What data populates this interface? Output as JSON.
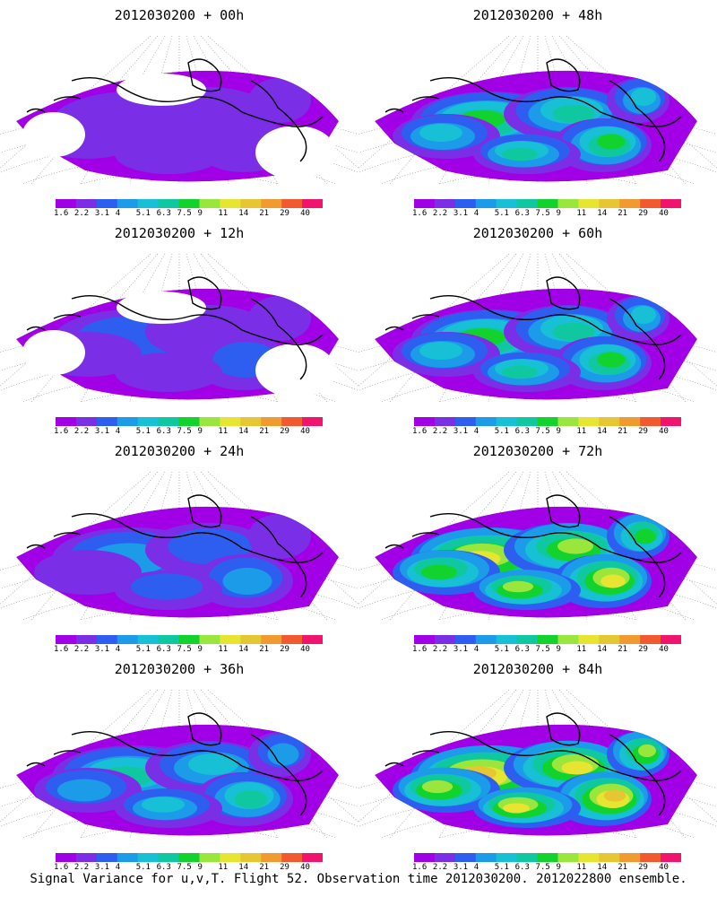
{
  "panels": [
    {
      "title": "2012030200 + 00h",
      "intensity": 0.1
    },
    {
      "title": "2012030200 + 48h",
      "intensity": 0.62
    },
    {
      "title": "2012030200 + 12h",
      "intensity": 0.25
    },
    {
      "title": "2012030200 + 60h",
      "intensity": 0.7
    },
    {
      "title": "2012030200 + 24h",
      "intensity": 0.38
    },
    {
      "title": "2012030200 + 72h",
      "intensity": 0.8
    },
    {
      "title": "2012030200 + 36h",
      "intensity": 0.5
    },
    {
      "title": "2012030200 + 84h",
      "intensity": 0.88
    }
  ],
  "colorbar": {
    "labels": [
      "1.6",
      "2.2",
      "3.1",
      "4",
      "5.1",
      "6.3",
      "7.5",
      "9",
      "11",
      "14",
      "21",
      "29",
      "40"
    ],
    "colors": [
      "#a100e6",
      "#7a2ee6",
      "#2e5ef0",
      "#1c9be8",
      "#18c0d6",
      "#10c8a0",
      "#12d22e",
      "#9ae63c",
      "#e6e632",
      "#e6c632",
      "#f09a30",
      "#f05a2e",
      "#f0146e"
    ]
  },
  "caption": "Signal Variance for u,v,T. Flight 52. Observation time 2012030200. 2012022800 ensemble."
}
